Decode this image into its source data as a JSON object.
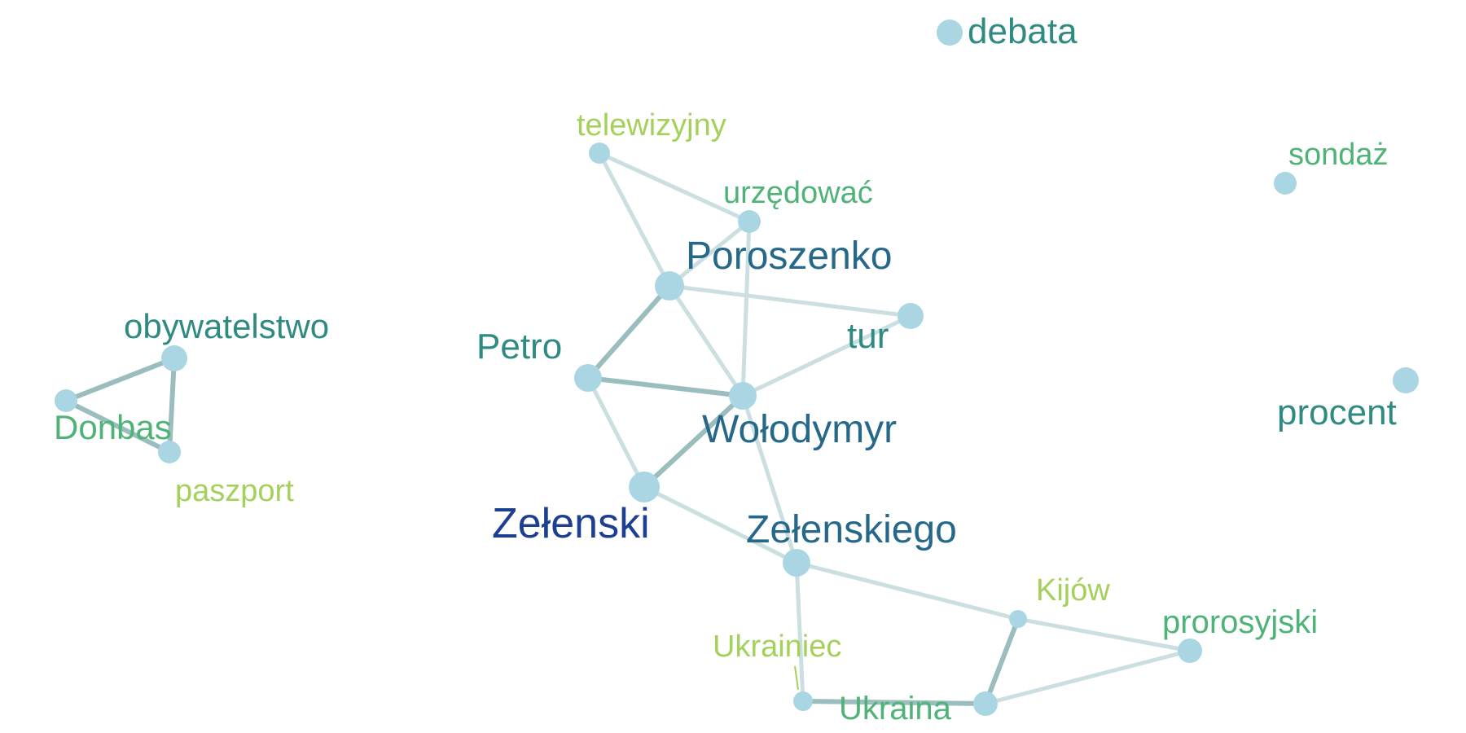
{
  "colors": {
    "node_fill": "#a9d6e2",
    "edge_strong": "#9bbdbd",
    "edge_weak": "#cbdfe0",
    "label_navy": "#1d3f91",
    "label_blue": "#25688a",
    "label_teal": "#2f8a82",
    "label_green": "#4fb377",
    "label_lime": "#a3d15c"
  },
  "nodes": [
    {
      "id": "debata",
      "label": "debata",
      "tone": "label_teal"
    },
    {
      "id": "telewizyjny",
      "label": "telewizyjny",
      "tone": "label_lime"
    },
    {
      "id": "urzedowac",
      "label": "urzędować",
      "tone": "label_green"
    },
    {
      "id": "sondaz",
      "label": "sondaż",
      "tone": "label_green"
    },
    {
      "id": "poroszenko",
      "label": "Poroszenko",
      "tone": "label_blue"
    },
    {
      "id": "tur",
      "label": "tur",
      "tone": "label_teal"
    },
    {
      "id": "obywatelstwo",
      "label": "obywatelstwo",
      "tone": "label_teal"
    },
    {
      "id": "petro",
      "label": "Petro",
      "tone": "label_teal"
    },
    {
      "id": "wolodymyr",
      "label": "Wołodymyr",
      "tone": "label_blue"
    },
    {
      "id": "procent",
      "label": "procent",
      "tone": "label_teal"
    },
    {
      "id": "donbas",
      "label": "Donbas",
      "tone": "label_green"
    },
    {
      "id": "paszport",
      "label": "paszport",
      "tone": "label_lime"
    },
    {
      "id": "zelenski",
      "label": "Zełenski",
      "tone": "label_navy"
    },
    {
      "id": "zelenskiego",
      "label": "Zełenskiego",
      "tone": "label_blue"
    },
    {
      "id": "kijow",
      "label": "Kijów",
      "tone": "label_lime"
    },
    {
      "id": "prorosyjski",
      "label": "prorosyjski",
      "tone": "label_green"
    },
    {
      "id": "ukrainiec",
      "label": "Ukrainiec",
      "tone": "label_lime"
    },
    {
      "id": "ukraina",
      "label": "Ukraina",
      "tone": "label_green"
    }
  ],
  "edges": [
    {
      "from": "telewizyjny",
      "to": "urzedowac",
      "strength": "weak"
    },
    {
      "from": "telewizyjny",
      "to": "poroszenko",
      "strength": "weak"
    },
    {
      "from": "urzedowac",
      "to": "poroszenko",
      "strength": "weak"
    },
    {
      "from": "urzedowac",
      "to": "wolodymyr",
      "strength": "weak"
    },
    {
      "from": "poroszenko",
      "to": "tur",
      "strength": "weak"
    },
    {
      "from": "poroszenko",
      "to": "petro",
      "strength": "strong"
    },
    {
      "from": "poroszenko",
      "to": "wolodymyr",
      "strength": "weak"
    },
    {
      "from": "petro",
      "to": "wolodymyr",
      "strength": "strong"
    },
    {
      "from": "petro",
      "to": "zelenski",
      "strength": "weak"
    },
    {
      "from": "wolodymyr",
      "to": "tur",
      "strength": "weak"
    },
    {
      "from": "wolodymyr",
      "to": "zelenski",
      "strength": "strong"
    },
    {
      "from": "wolodymyr",
      "to": "zelenskiego",
      "strength": "weak"
    },
    {
      "from": "zelenski",
      "to": "zelenskiego",
      "strength": "weak"
    },
    {
      "from": "zelenskiego",
      "to": "kijow",
      "strength": "weak"
    },
    {
      "from": "zelenskiego",
      "to": "ukrainiec",
      "strength": "weak"
    },
    {
      "from": "kijow",
      "to": "prorosyjski",
      "strength": "weak"
    },
    {
      "from": "kijow",
      "to": "ukraina",
      "strength": "strong"
    },
    {
      "from": "ukrainiec",
      "to": "ukraina",
      "strength": "strong"
    },
    {
      "from": "ukraina",
      "to": "prorosyjski",
      "strength": "weak"
    },
    {
      "from": "obywatelstwo",
      "to": "donbas",
      "strength": "strong"
    },
    {
      "from": "obywatelstwo",
      "to": "paszport",
      "strength": "strong"
    },
    {
      "from": "donbas",
      "to": "paszport",
      "strength": "strong"
    }
  ]
}
